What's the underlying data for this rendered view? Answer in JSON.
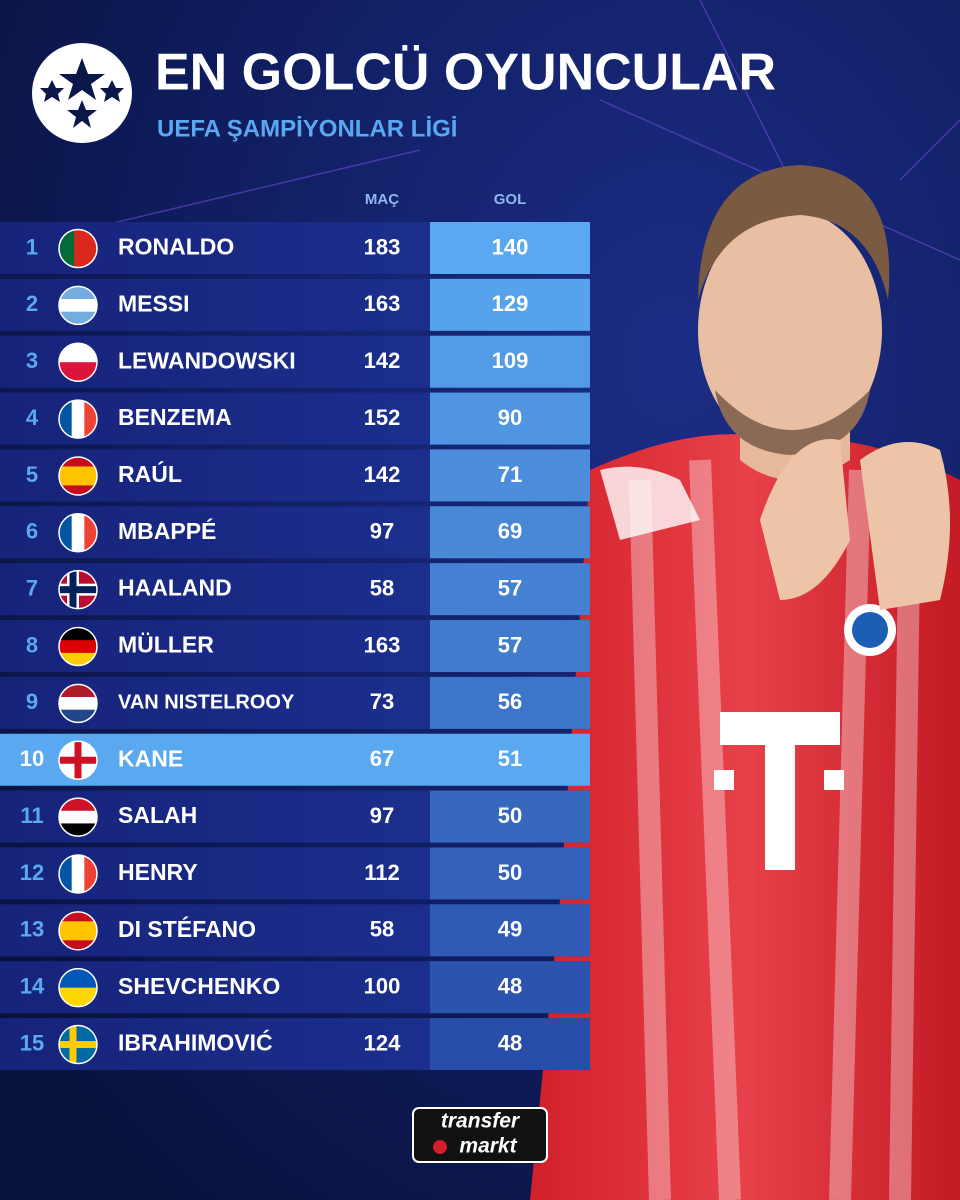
{
  "header": {
    "title": "EN GOLCÜ OYUNCULAR",
    "subtitle": "UEFA ŞAMPİYONLAR LİGİ"
  },
  "table": {
    "columns": [
      "MAÇ",
      "GOL"
    ],
    "rows": [
      [
        "1",
        "RONALDO",
        "183",
        "140"
      ],
      [
        "2",
        "MESSI",
        "163",
        "129"
      ],
      [
        "3",
        "LEWANDOWSKI",
        "142",
        "109"
      ],
      [
        "4",
        "BENZEMA",
        "152",
        "90"
      ],
      [
        "5",
        "RAÚL",
        "142",
        "71"
      ],
      [
        "6",
        "MBAPPÉ",
        "97",
        "69"
      ],
      [
        "7",
        "HAALAND",
        "58",
        "57"
      ],
      [
        "8",
        "MÜLLER",
        "163",
        "57"
      ],
      [
        "9",
        "VAN NISTELROOY",
        "73",
        "56"
      ],
      [
        "10",
        "KANE",
        "67",
        "51"
      ],
      [
        "11",
        "SALAH",
        "97",
        "50"
      ],
      [
        "12",
        "HENRY",
        "112",
        "50"
      ],
      [
        "13",
        "DI STÉFANO",
        "58",
        "49"
      ],
      [
        "14",
        "SHEVCHENKO",
        "100",
        "48"
      ],
      [
        "15",
        "IBRAHIMOVIĆ",
        "124",
        "48"
      ]
    ]
  },
  "footer": {
    "logo": [
      "transfer",
      "markt"
    ]
  }
}
